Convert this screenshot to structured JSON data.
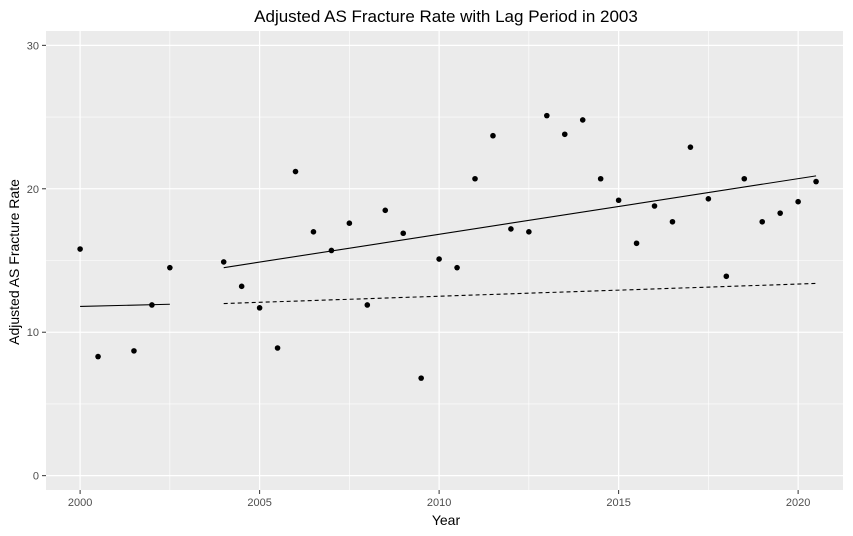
{
  "chart_data": {
    "type": "scatter",
    "title": "Adjusted AS Fracture Rate with Lag Period in 2003",
    "xlabel": "Year",
    "ylabel": "Adjusted AS Fracture Rate",
    "xlim": [
      1999.05,
      2021.25
    ],
    "ylim": [
      -1.0,
      31.0
    ],
    "x_ticks": [
      2000,
      2005,
      2010,
      2015,
      2020
    ],
    "x_tick_labels": [
      "2000",
      "2005",
      "2010",
      "2015",
      "2020"
    ],
    "y_ticks": [
      0,
      10,
      20,
      30
    ],
    "y_tick_labels": [
      "0",
      "10",
      "20",
      "30"
    ],
    "grid": true,
    "legend": "none",
    "points": [
      {
        "x": 2000.0,
        "y": 15.8
      },
      {
        "x": 2000.5,
        "y": 8.3
      },
      {
        "x": 2001.5,
        "y": 8.7
      },
      {
        "x": 2002.0,
        "y": 11.9
      },
      {
        "x": 2002.5,
        "y": 14.5
      },
      {
        "x": 2004.0,
        "y": 14.9
      },
      {
        "x": 2004.5,
        "y": 13.2
      },
      {
        "x": 2005.0,
        "y": 11.7
      },
      {
        "x": 2005.5,
        "y": 8.9
      },
      {
        "x": 2006.0,
        "y": 21.2
      },
      {
        "x": 2006.5,
        "y": 17.0
      },
      {
        "x": 2007.0,
        "y": 15.7
      },
      {
        "x": 2007.5,
        "y": 17.6
      },
      {
        "x": 2008.0,
        "y": 11.9
      },
      {
        "x": 2008.5,
        "y": 18.5
      },
      {
        "x": 2009.0,
        "y": 16.9
      },
      {
        "x": 2009.5,
        "y": 6.8
      },
      {
        "x": 2010.0,
        "y": 15.1
      },
      {
        "x": 2010.5,
        "y": 14.5
      },
      {
        "x": 2011.0,
        "y": 20.7
      },
      {
        "x": 2011.5,
        "y": 23.7
      },
      {
        "x": 2012.0,
        "y": 17.2
      },
      {
        "x": 2012.5,
        "y": 17.0
      },
      {
        "x": 2013.0,
        "y": 25.1
      },
      {
        "x": 2013.5,
        "y": 23.8
      },
      {
        "x": 2014.0,
        "y": 24.8
      },
      {
        "x": 2014.5,
        "y": 20.7
      },
      {
        "x": 2015.0,
        "y": 19.2
      },
      {
        "x": 2015.5,
        "y": 16.2
      },
      {
        "x": 2016.0,
        "y": 18.8
      },
      {
        "x": 2016.5,
        "y": 17.7
      },
      {
        "x": 2017.0,
        "y": 22.9
      },
      {
        "x": 2017.5,
        "y": 19.3
      },
      {
        "x": 2018.0,
        "y": 13.9
      },
      {
        "x": 2018.5,
        "y": 20.7
      },
      {
        "x": 2019.0,
        "y": 17.7
      },
      {
        "x": 2019.5,
        "y": 18.3
      },
      {
        "x": 2020.0,
        "y": 19.1
      },
      {
        "x": 2020.5,
        "y": 20.5
      }
    ],
    "lines": [
      {
        "style": "solid",
        "x": [
          2000.0,
          2002.5
        ],
        "y": [
          11.8,
          11.95
        ]
      },
      {
        "style": "solid",
        "x": [
          2004.0,
          2020.5
        ],
        "y": [
          14.5,
          20.9
        ]
      },
      {
        "style": "dashed",
        "x": [
          2004.0,
          2020.5
        ],
        "y": [
          12.0,
          13.4
        ]
      }
    ],
    "colors": {
      "panel": "#ebebeb",
      "grid_major": "#ffffff",
      "points": "#000000",
      "lines": "#000000",
      "tick_label": "#4d4d4d",
      "tick_mark": "#333333"
    }
  }
}
